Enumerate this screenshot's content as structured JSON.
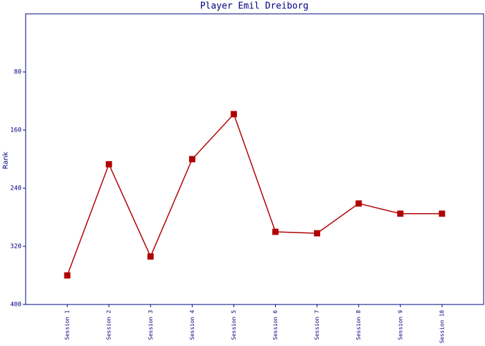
{
  "chart_data": {
    "type": "line",
    "title": "Player Emil Dreiborg",
    "y_label": "Rank",
    "categories": [
      "Session 1",
      "Session 2",
      "Session 3",
      "Session 4",
      "Session 5",
      "Session 6",
      "Session 7",
      "Session 8",
      "Session 9",
      "Session 10"
    ],
    "series": [
      {
        "name": "Rank",
        "color": "#b00000",
        "values": [
          360,
          207,
          334,
          200,
          138,
          300,
          302,
          261,
          275,
          275
        ]
      }
    ],
    "ylim": [
      0,
      400
    ],
    "y_inverted": true,
    "yticks": [
      80,
      160,
      240,
      320,
      400
    ],
    "grid": false
  }
}
